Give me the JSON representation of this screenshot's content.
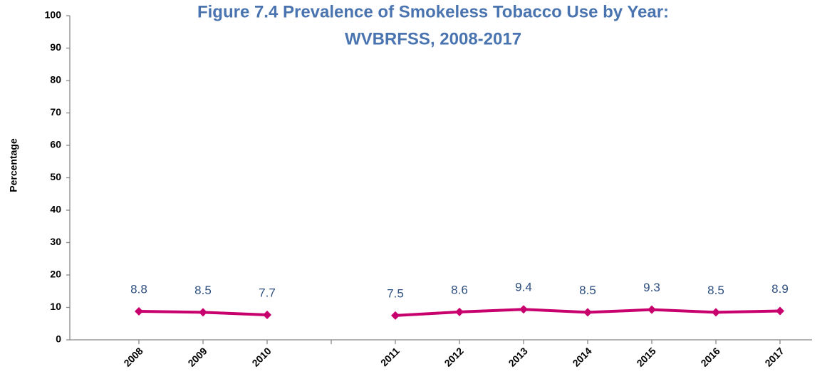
{
  "chart_data": {
    "type": "line",
    "title": [
      "Figure 7.4  Prevalence of Smokeless Tobacco Use by Year:",
      "WVBRFSS, 2008-2017"
    ],
    "y_label": "Percentage",
    "categories": [
      "2008",
      "2009",
      "2010",
      null,
      "2011",
      "2012",
      "2013",
      "2014",
      "2015",
      "2016",
      "2017"
    ],
    "values": [
      8.8,
      8.5,
      7.7,
      null,
      7.5,
      8.6,
      9.4,
      8.5,
      9.3,
      8.5,
      8.9
    ],
    "color": "#c8006e",
    "ylim": [
      0,
      100
    ],
    "yticks": [
      0,
      10,
      20,
      30,
      40,
      50,
      60,
      70,
      80,
      90,
      100
    ],
    "grid": false
  }
}
